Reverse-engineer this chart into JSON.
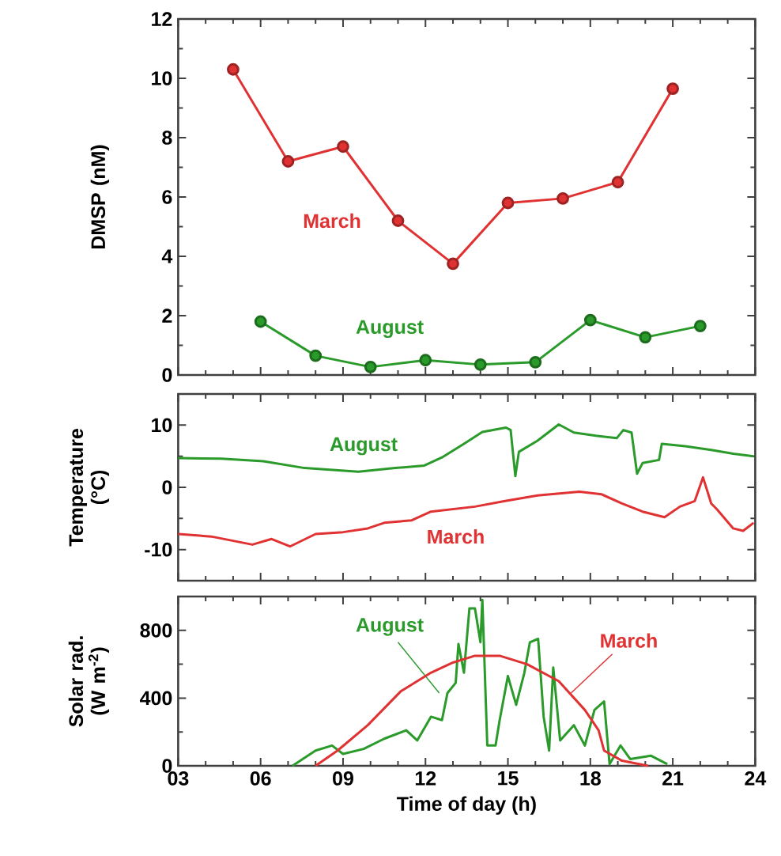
{
  "chart_data": [
    {
      "type": "line",
      "ylabel": "DMSP  (nM)",
      "marker": "circle",
      "tick_labels": "y",
      "xlim": [
        3,
        24
      ],
      "xticks": [
        3,
        6,
        9,
        12,
        15,
        18,
        21,
        24
      ],
      "ylim": [
        0,
        12
      ],
      "yticks": [
        0,
        2,
        4,
        6,
        8,
        10,
        12
      ],
      "series": [
        {
          "name": "March",
          "color": "#e03232",
          "x": [
            5,
            7,
            9,
            11,
            13,
            15,
            17,
            19,
            21
          ],
          "values": [
            10.3,
            7.2,
            7.7,
            5.2,
            3.75,
            5.8,
            5.95,
            6.5,
            9.65
          ]
        },
        {
          "name": "August",
          "color": "#2a9a2a",
          "x": [
            6,
            8,
            10,
            12,
            14,
            16,
            18,
            20,
            22
          ],
          "values": [
            1.8,
            0.65,
            0.27,
            0.5,
            0.35,
            0.43,
            1.85,
            1.27,
            1.65
          ]
        }
      ]
    },
    {
      "type": "line",
      "ylabel": "Temperature (°C)",
      "marker": "none",
      "tick_labels": "y",
      "xlim": [
        3,
        24
      ],
      "xticks": [
        3,
        6,
        9,
        12,
        15,
        18,
        21,
        24
      ],
      "ylim": [
        -15,
        15
      ],
      "yticks": [
        -10,
        0,
        10
      ],
      "series": [
        {
          "name": "August",
          "color": "#2a9a2a",
          "x": [
            3,
            4.57,
            6.1,
            7.6,
            9.56,
            10.9,
            11.96,
            12.6,
            13.4,
            14.07,
            14.93,
            15.1,
            15.27,
            15.4,
            16.08,
            16.85,
            17.4,
            18.2,
            18.96,
            19.2,
            19.5,
            19.7,
            19.9,
            20.5,
            20.6,
            21.45,
            22.4,
            23.2,
            23.94
          ],
          "values": [
            4.7,
            4.6,
            4.2,
            3.1,
            2.5,
            3.1,
            3.5,
            4.8,
            7.0,
            8.9,
            9.6,
            9.2,
            1.8,
            5.7,
            7.5,
            10.1,
            8.8,
            8.3,
            7.9,
            9.2,
            8.8,
            2.2,
            3.9,
            4.4,
            7.0,
            6.6,
            6.0,
            5.4,
            5.0
          ]
        },
        {
          "name": "March",
          "color": "#e03232",
          "x": [
            3,
            4.2,
            5.7,
            6.4,
            7.07,
            8.0,
            9.0,
            9.9,
            10.5,
            11.5,
            12.2,
            13.8,
            14.9,
            16.08,
            17.6,
            18.4,
            19.15,
            19.9,
            20.7,
            21.26,
            21.8,
            22.1,
            22.4,
            22.6,
            23.2,
            23.56,
            23.94
          ],
          "values": [
            -7.5,
            -7.9,
            -9.2,
            -8.3,
            -9.5,
            -7.5,
            -7.2,
            -6.6,
            -5.7,
            -5.3,
            -3.9,
            -3.1,
            -2.2,
            -1.3,
            -0.7,
            -1.1,
            -2.6,
            -3.9,
            -4.8,
            -3.1,
            -2.2,
            1.6,
            -2.6,
            -3.5,
            -6.6,
            -7.0,
            -5.7
          ]
        }
      ]
    },
    {
      "type": "line",
      "ylabel": "Solar rad. (W m$^{-2}$)",
      "xlabel": "Time of day  (h)",
      "marker": "none",
      "xlim": [
        3,
        24
      ],
      "xticks": [
        {
          "value": 3,
          "label": "03"
        },
        {
          "value": 6,
          "label": "06"
        },
        {
          "value": 9,
          "label": "09"
        },
        12,
        15,
        18,
        21,
        24
      ],
      "ylim": [
        0,
        1000
      ],
      "yticks": [
        0,
        400,
        800
      ],
      "series": [
        {
          "name": "August",
          "color": "#2a9a2a",
          "x": [
            7.16,
            8.0,
            8.6,
            9.0,
            9.75,
            10.5,
            11.3,
            11.7,
            12.2,
            12.6,
            12.8,
            13.1,
            13.2,
            13.4,
            13.6,
            13.8,
            14.0,
            14.07,
            14.25,
            14.55,
            14.7,
            15.0,
            15.3,
            15.6,
            15.8,
            16.1,
            16.3,
            16.5,
            16.65,
            16.9,
            17.4,
            17.8,
            18.15,
            18.5,
            18.7,
            19.1,
            19.45,
            20.2,
            20.8
          ],
          "values": [
            0,
            90,
            120,
            70,
            100,
            160,
            210,
            150,
            290,
            270,
            430,
            490,
            720,
            550,
            930,
            930,
            730,
            980,
            120,
            120,
            270,
            530,
            360,
            550,
            730,
            750,
            290,
            90,
            580,
            150,
            240,
            120,
            330,
            380,
            10,
            120,
            40,
            60,
            10
          ]
        },
        {
          "name": "March",
          "color": "#e03232",
          "x": [
            8.0,
            8.8,
            9.9,
            11.1,
            12.2,
            13.0,
            13.8,
            14.7,
            15.7,
            16.85,
            17.8,
            18.3,
            18.5,
            19.15,
            20.1
          ],
          "values": [
            0,
            90,
            240,
            440,
            550,
            610,
            650,
            650,
            600,
            500,
            330,
            210,
            90,
            30,
            0
          ]
        }
      ]
    }
  ]
}
